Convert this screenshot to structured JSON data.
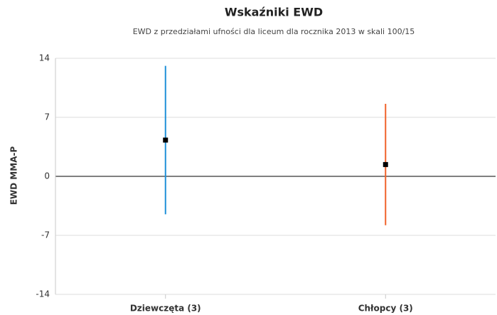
{
  "chart_data": {
    "type": "errorbar",
    "title": "Wskaźniki EWD",
    "subtitle": "EWD z przedziałami ufności dla liceum dla rocznika 2013 w skali 100/15",
    "y_label": "EWD MMA-P",
    "categories": [
      "Dziewczęta (3)",
      "Chłopcy (3)"
    ],
    "values": [
      4.3,
      1.4
    ],
    "errors": [
      8.8,
      7.2
    ],
    "colors": [
      "#1e90d8",
      "#f0622a"
    ],
    "marker_color": "#000000",
    "ylim": [
      -14,
      14
    ],
    "yticks": [
      -14,
      -7,
      0,
      7,
      14
    ],
    "grid": true
  }
}
